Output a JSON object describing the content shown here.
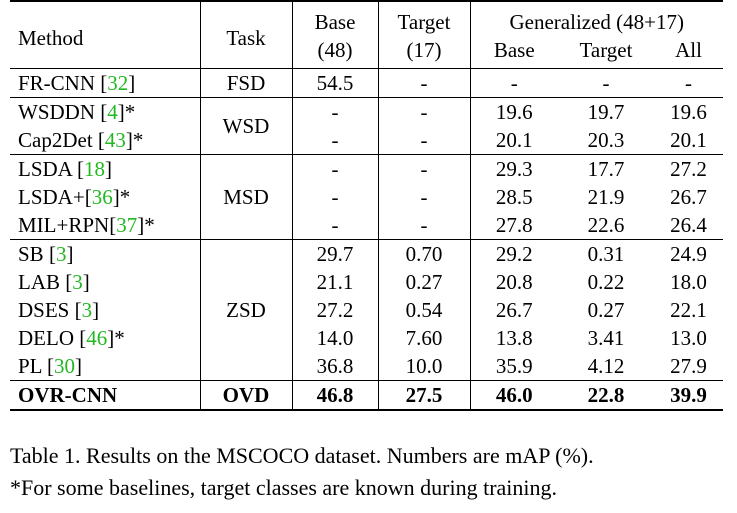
{
  "table": {
    "header": {
      "method": "Method",
      "task": "Task",
      "base_line1": "Base",
      "base_line2": "(48)",
      "target_line1": "Target",
      "target_line2": "(17)",
      "generalized": "Generalized (48+17)",
      "gen_base": "Base",
      "gen_target": "Target",
      "gen_all": "All"
    },
    "groups": [
      {
        "task": "FSD",
        "rows": [
          {
            "name": "FR-CNN ",
            "ref": "32",
            "suffix": "",
            "base": "54.5",
            "target": "-",
            "gen_base": "-",
            "gen_target": "-",
            "gen_all": "-"
          }
        ]
      },
      {
        "task": "WSD",
        "rows": [
          {
            "name": "WSDDN ",
            "ref": "4",
            "suffix": "*",
            "base": "-",
            "target": "-",
            "gen_base": "19.6",
            "gen_target": "19.7",
            "gen_all": "19.6"
          },
          {
            "name": "Cap2Det ",
            "ref": "43",
            "suffix": "*",
            "base": "-",
            "target": "-",
            "gen_base": "20.1",
            "gen_target": "20.3",
            "gen_all": "20.1"
          }
        ]
      },
      {
        "task": "MSD",
        "rows": [
          {
            "name": "LSDA ",
            "ref": "18",
            "suffix": "",
            "base": "-",
            "target": "-",
            "gen_base": "29.3",
            "gen_target": "17.7",
            "gen_all": "27.2"
          },
          {
            "name": "LSDA+",
            "ref": "36",
            "suffix": "*",
            "base": "-",
            "target": "-",
            "gen_base": "28.5",
            "gen_target": "21.9",
            "gen_all": "26.7"
          },
          {
            "name": "MIL+RPN",
            "ref": "37",
            "suffix": "*",
            "base": "-",
            "target": "-",
            "gen_base": "27.8",
            "gen_target": "22.6",
            "gen_all": "26.4"
          }
        ]
      },
      {
        "task": "ZSD",
        "rows": [
          {
            "name": "SB ",
            "ref": "3",
            "suffix": "",
            "base": "29.7",
            "target": "0.70",
            "gen_base": "29.2",
            "gen_target": "0.31",
            "gen_all": "24.9"
          },
          {
            "name": "LAB ",
            "ref": "3",
            "suffix": "",
            "base": "21.1",
            "target": "0.27",
            "gen_base": "20.8",
            "gen_target": "0.22",
            "gen_all": "18.0"
          },
          {
            "name": "DSES ",
            "ref": "3",
            "suffix": "",
            "base": "27.2",
            "target": "0.54",
            "gen_base": "26.7",
            "gen_target": "0.27",
            "gen_all": "22.1"
          },
          {
            "name": "DELO ",
            "ref": "46",
            "suffix": "*",
            "base": "14.0",
            "target": "7.60",
            "gen_base": "13.8",
            "gen_target": "3.41",
            "gen_all": "13.0"
          },
          {
            "name": "PL ",
            "ref": "30",
            "suffix": "",
            "base": "36.8",
            "target": "10.0",
            "gen_base": "35.9",
            "gen_target": "4.12",
            "gen_all": "27.9"
          }
        ]
      },
      {
        "task": "OVD",
        "bold": true,
        "rows": [
          {
            "name": "OVR-CNN",
            "ref": "",
            "suffix": "",
            "base": "46.8",
            "target": "27.5",
            "gen_base": "46.0",
            "gen_target": "22.8",
            "gen_all": "39.9"
          }
        ]
      }
    ]
  },
  "caption": {
    "line1": "Table 1. Results on the MSCOCO dataset. Numbers are mAP (%).",
    "line2": "*For some baselines, target classes are known during training."
  },
  "colors": {
    "citation": "#22b822"
  }
}
